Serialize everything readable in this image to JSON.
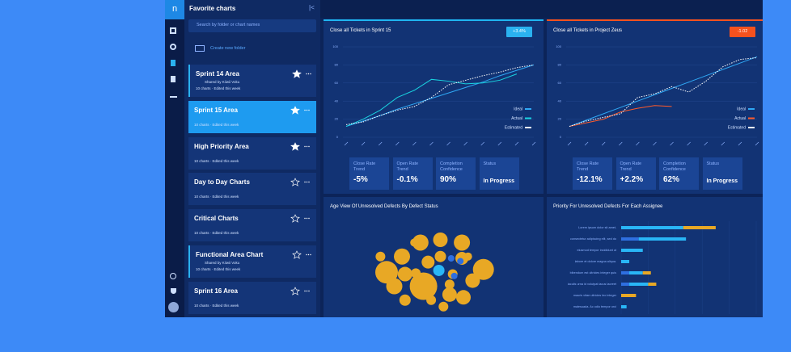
{
  "sidebar": {
    "title": "Favorite charts",
    "search": "Search by folder or chart names",
    "create": "Create new folder",
    "folders": [
      {
        "name": "Sprint 14 Area",
        "shared": "Shared by Kiiwii Voku",
        "meta": "10 charts · Edited this week",
        "starred": true,
        "accent": true
      },
      {
        "name": "Sprint 15 Area",
        "meta": "10 charts · Edited this week",
        "starred": true,
        "selected": true
      },
      {
        "name": "High Priority Area",
        "meta": "10 charts · Edited this week",
        "starred": true
      },
      {
        "name": "Day to Day Charts",
        "meta": "10 charts · Edited this week",
        "starred": false
      },
      {
        "name": "Critical Charts",
        "meta": "10 charts · Edited this week",
        "starred": false
      },
      {
        "name": "Functional Area Chart",
        "shared": "Shared by Kiiwii Voku",
        "meta": "10 charts · Edited this week",
        "starred": false,
        "accent": true
      },
      {
        "name": "Sprint 16 Area",
        "meta": "10 charts · Edited this week",
        "starred": false
      }
    ]
  },
  "charts": [
    {
      "type": "line",
      "title": "Close all Tickets in Sprint 15",
      "badge": "+3.4%",
      "badge_color": "#2ab2f0",
      "accent": "#1fb6f2",
      "categories": [
        null,
        null,
        null,
        null,
        null,
        null,
        null,
        null,
        null,
        null,
        null,
        null
      ],
      "ylim": [
        0,
        100
      ],
      "yticks": [
        0,
        20,
        40,
        60,
        80,
        100
      ],
      "grid": true,
      "series": [
        {
          "name": "Ideal",
          "color": "#2fa8f5",
          "values": [
            12,
            18,
            24,
            31,
            37,
            43,
            49,
            55,
            61,
            68,
            74,
            80
          ]
        },
        {
          "name": "Actual",
          "color": "#19d3e0",
          "values": [
            12,
            20,
            30,
            44,
            52,
            64,
            62,
            59,
            60,
            63,
            70,
            null
          ]
        },
        {
          "name": "Estimated",
          "color": "#ffffff",
          "dashed": true,
          "values": [
            14,
            17,
            24,
            30,
            34,
            44,
            58,
            63,
            68,
            72,
            77,
            80
          ]
        }
      ],
      "kpis": [
        {
          "label": "Close Rate Trend",
          "value": "-5%"
        },
        {
          "label": "Open Rate Trend",
          "value": "-0.1%"
        },
        {
          "label": "Completion Confidence",
          "value": "90%"
        },
        {
          "label": "Status",
          "value": "In Progress"
        }
      ]
    },
    {
      "type": "line",
      "title": "Close all Tickets in Project Zeus",
      "badge": "-1.02",
      "badge_color": "#f4511e",
      "accent": "#f4511e",
      "categories": [
        null,
        null,
        null,
        null,
        null,
        null,
        null,
        null,
        null,
        null,
        null,
        null
      ],
      "ylim": [
        0,
        100
      ],
      "yticks": [
        0,
        20,
        40,
        60,
        80,
        100
      ],
      "grid": true,
      "series": [
        {
          "name": "Ideal",
          "color": "#2fa8f5",
          "values": [
            12,
            19,
            26,
            33,
            40,
            47,
            54,
            61,
            68,
            75,
            82,
            89
          ]
        },
        {
          "name": "Actual",
          "color": "#ff5a2a",
          "values": [
            12,
            16,
            20,
            28,
            32,
            35,
            34,
            null,
            null,
            null,
            null,
            null
          ]
        },
        {
          "name": "Estimated",
          "color": "#ffffff",
          "dashed": true,
          "values": [
            12,
            18,
            22,
            26,
            44,
            48,
            56,
            50,
            62,
            78,
            86,
            88
          ]
        }
      ],
      "kpis": [
        {
          "label": "Close Rate Trend",
          "value": "-12.1%"
        },
        {
          "label": "Open Rate Trend",
          "value": "+2.2%"
        },
        {
          "label": "Completion Confidence",
          "value": "62%"
        },
        {
          "label": "Status",
          "value": "In Progress"
        }
      ]
    },
    {
      "type": "bubble",
      "title": "Age View Of Unresolved Defects By Defect Status",
      "xlim": [
        0,
        100
      ],
      "ylim": [
        0,
        100
      ],
      "series": [
        {
          "color": "#e8a825",
          "x": [
            20,
            30,
            42,
            55,
            69,
            83,
            44,
            25,
            32,
            61,
            70,
            57,
            76,
            69,
            55,
            47,
            32,
            39,
            63,
            49,
            16,
            38,
            73,
            61
          ],
          "values": [
            45,
            62,
            77,
            80,
            77,
            48,
            30,
            30,
            15,
            21,
            18,
            8,
            36,
            60,
            62,
            56,
            43,
            44,
            43,
            15,
            62,
            77,
            62,
            32
          ],
          "sizes": [
            14,
            10,
            10,
            9,
            10,
            13,
            17,
            10,
            7,
            9,
            9,
            6,
            9,
            8,
            7,
            8,
            9,
            6,
            6,
            6,
            6,
            5,
            5,
            6
          ]
        },
        {
          "color": "#29b6f6",
          "x": [
            54
          ],
          "values": [
            47
          ],
          "sizes": [
            7
          ]
        },
        {
          "color": "#2f6fe0",
          "x": [
            62,
            68,
            64
          ],
          "values": [
            60,
            57,
            41
          ],
          "sizes": [
            4,
            4,
            4
          ]
        }
      ]
    },
    {
      "type": "hbar",
      "title": "Priority For Unresolved Defects For Each Assignee",
      "xlim": [
        0,
        100
      ],
      "categories": [
        "Lorem ipsum dolor sit amet,",
        "consectetur adipiscing elit, sed do",
        "eiusmod tempor incididunt ut",
        "labore et dolore magna aliqua.",
        "bibendum est ultricies integer quis",
        "iaculis urna id volutpat lacus laoreet",
        "mauris vitae ultricies leo integer",
        "malesuada. Ac odio tempor orci"
      ],
      "series": [
        {
          "color": "#2f6fe0",
          "values": [
            0,
            13,
            0,
            0,
            6,
            6,
            0,
            0
          ]
        },
        {
          "color": "#29b6f6",
          "values": [
            46,
            35,
            16,
            6,
            10,
            14,
            0,
            4
          ]
        },
        {
          "color": "#e8a825",
          "values": [
            24,
            0,
            0,
            0,
            6,
            6,
            11,
            0
          ]
        }
      ]
    }
  ]
}
